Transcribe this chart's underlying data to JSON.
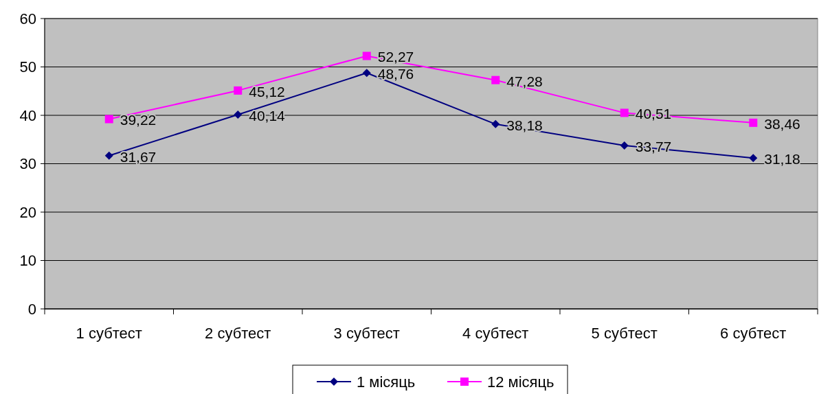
{
  "chart_data": {
    "type": "line",
    "categories": [
      "1 субтест",
      "2 субтест",
      "3 субтест",
      "4 субтест",
      "5 субтест",
      "6 субтест"
    ],
    "series": [
      {
        "name": "1 місяць",
        "color": "#000080",
        "marker": "diamond",
        "values": [
          31.67,
          40.14,
          48.76,
          38.18,
          33.77,
          31.18
        ],
        "value_labels": [
          "31,67",
          "40,14",
          "48,76",
          "38,18",
          "33,77",
          "31,18"
        ]
      },
      {
        "name": "12 місяць",
        "color": "#ff00ff",
        "marker": "square",
        "values": [
          39.22,
          45.12,
          52.27,
          47.28,
          40.51,
          38.46
        ],
        "value_labels": [
          "39,22",
          "45,12",
          "52,27",
          "47,28",
          "40,51",
          "38,46"
        ]
      }
    ],
    "ylim": [
      0,
      60
    ],
    "yticks": [
      0,
      10,
      20,
      30,
      40,
      50,
      60
    ],
    "grid": "y",
    "legend": "bottom"
  }
}
